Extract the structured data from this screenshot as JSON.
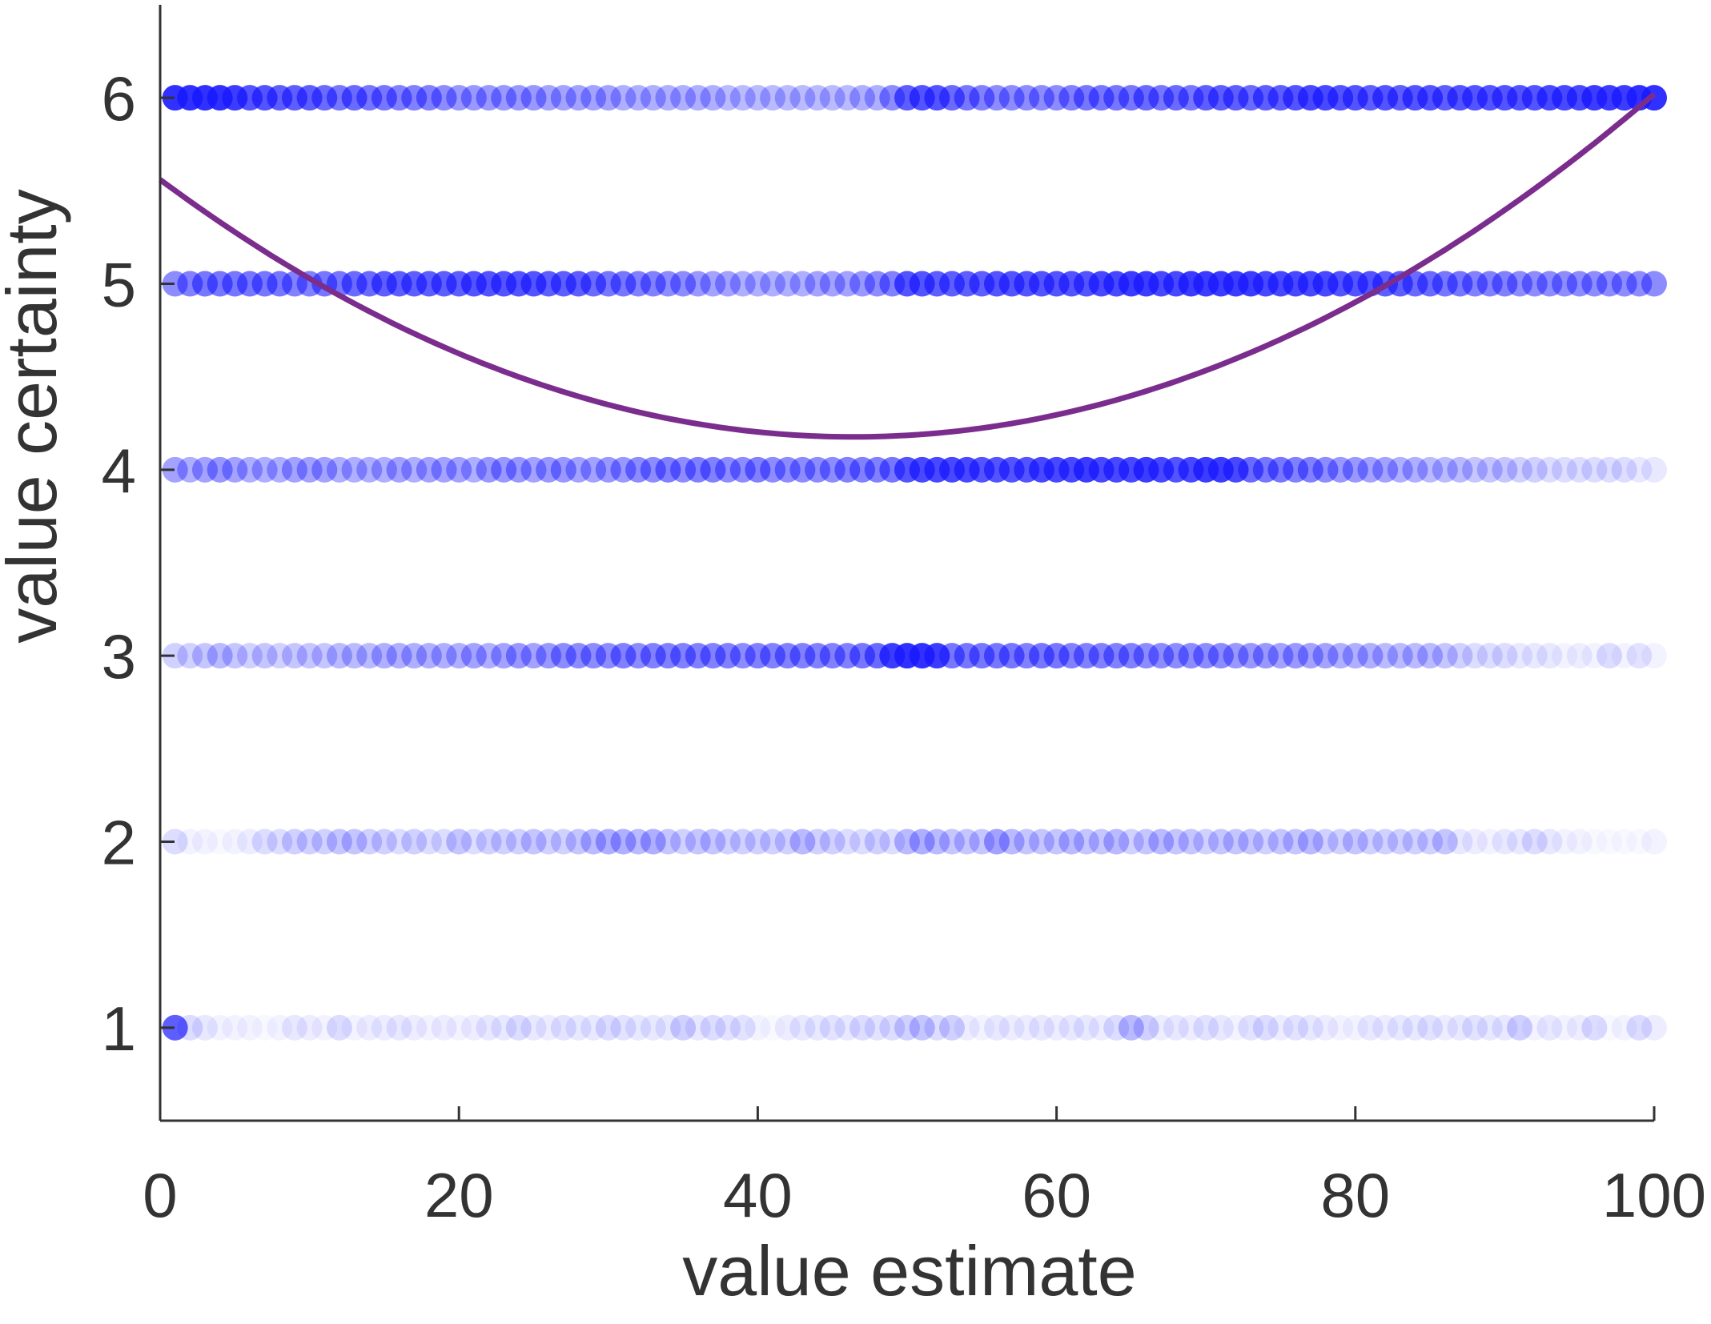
{
  "chart_data": {
    "type": "scatter",
    "xlabel": "value estimate",
    "ylabel": "value certainty",
    "xlim": [
      0,
      100
    ],
    "ylim": [
      0.5,
      6.5
    ],
    "xticks": [
      0,
      20,
      40,
      60,
      80,
      100
    ],
    "yticks": [
      1,
      2,
      3,
      4,
      5,
      6
    ],
    "grid": false,
    "marker_color": "#1a1aff",
    "curve_color": "#7b2d8e",
    "axis_color": "#333333",
    "x_step": 1,
    "points": {
      "levels": [
        6,
        5,
        4,
        3,
        2,
        1
      ],
      "x_values": [
        1,
        100
      ],
      "opacity_6": [
        0.9,
        0.9,
        0.9,
        0.9,
        0.85,
        0.75,
        0.75,
        0.7,
        0.7,
        0.7,
        0.65,
        0.6,
        0.65,
        0.6,
        0.6,
        0.55,
        0.55,
        0.55,
        0.5,
        0.45,
        0.45,
        0.45,
        0.45,
        0.45,
        0.45,
        0.4,
        0.4,
        0.4,
        0.4,
        0.4,
        0.35,
        0.35,
        0.35,
        0.35,
        0.35,
        0.35,
        0.35,
        0.3,
        0.3,
        0.3,
        0.3,
        0.3,
        0.3,
        0.3,
        0.3,
        0.3,
        0.35,
        0.35,
        0.5,
        0.7,
        0.75,
        0.75,
        0.65,
        0.6,
        0.55,
        0.5,
        0.5,
        0.5,
        0.5,
        0.5,
        0.55,
        0.6,
        0.6,
        0.6,
        0.6,
        0.65,
        0.6,
        0.65,
        0.6,
        0.7,
        0.7,
        0.7,
        0.65,
        0.7,
        0.7,
        0.75,
        0.8,
        0.8,
        0.75,
        0.75,
        0.7,
        0.75,
        0.7,
        0.75,
        0.75,
        0.7,
        0.75,
        0.75,
        0.75,
        0.75,
        0.75,
        0.75,
        0.8,
        0.8,
        0.8,
        0.85,
        0.85,
        0.85,
        0.9,
        0.9
      ],
      "opacity_5": [
        0.5,
        0.55,
        0.6,
        0.6,
        0.6,
        0.6,
        0.6,
        0.6,
        0.55,
        0.55,
        0.6,
        0.6,
        0.65,
        0.65,
        0.7,
        0.7,
        0.7,
        0.7,
        0.7,
        0.7,
        0.75,
        0.75,
        0.75,
        0.75,
        0.75,
        0.7,
        0.7,
        0.7,
        0.65,
        0.6,
        0.6,
        0.55,
        0.55,
        0.5,
        0.5,
        0.45,
        0.4,
        0.4,
        0.35,
        0.35,
        0.35,
        0.35,
        0.35,
        0.4,
        0.4,
        0.4,
        0.45,
        0.5,
        0.55,
        0.75,
        0.75,
        0.7,
        0.7,
        0.7,
        0.7,
        0.75,
        0.75,
        0.75,
        0.75,
        0.75,
        0.75,
        0.75,
        0.8,
        0.8,
        0.85,
        0.85,
        0.8,
        0.8,
        0.85,
        0.85,
        0.85,
        0.85,
        0.85,
        0.8,
        0.8,
        0.8,
        0.8,
        0.8,
        0.75,
        0.75,
        0.75,
        0.7,
        0.7,
        0.65,
        0.65,
        0.6,
        0.6,
        0.55,
        0.55,
        0.55,
        0.5,
        0.5,
        0.5,
        0.5,
        0.5,
        0.5,
        0.5,
        0.5,
        0.5,
        0.5
      ],
      "opacity_4": [
        0.4,
        0.35,
        0.4,
        0.45,
        0.4,
        0.35,
        0.35,
        0.35,
        0.4,
        0.4,
        0.4,
        0.35,
        0.35,
        0.35,
        0.35,
        0.4,
        0.35,
        0.4,
        0.4,
        0.4,
        0.35,
        0.45,
        0.45,
        0.45,
        0.4,
        0.45,
        0.45,
        0.4,
        0.4,
        0.45,
        0.45,
        0.5,
        0.5,
        0.55,
        0.5,
        0.55,
        0.55,
        0.5,
        0.5,
        0.55,
        0.5,
        0.5,
        0.5,
        0.5,
        0.5,
        0.55,
        0.55,
        0.55,
        0.6,
        0.75,
        0.8,
        0.8,
        0.8,
        0.8,
        0.75,
        0.75,
        0.75,
        0.75,
        0.8,
        0.8,
        0.8,
        0.85,
        0.8,
        0.8,
        0.8,
        0.85,
        0.8,
        0.75,
        0.8,
        0.85,
        0.85,
        0.8,
        0.65,
        0.6,
        0.6,
        0.55,
        0.55,
        0.5,
        0.45,
        0.45,
        0.4,
        0.4,
        0.35,
        0.35,
        0.3,
        0.3,
        0.3,
        0.25,
        0.25,
        0.25,
        0.2,
        0.2,
        0.15,
        0.15,
        0.15,
        0.15,
        0.15,
        0.15,
        0.1,
        0.1
      ],
      "opacity_3": [
        0.2,
        0.2,
        0.25,
        0.3,
        0.25,
        0.2,
        0.25,
        0.2,
        0.25,
        0.25,
        0.25,
        0.3,
        0.3,
        0.3,
        0.35,
        0.35,
        0.35,
        0.35,
        0.35,
        0.35,
        0.4,
        0.35,
        0.4,
        0.45,
        0.4,
        0.45,
        0.5,
        0.5,
        0.5,
        0.5,
        0.55,
        0.5,
        0.55,
        0.55,
        0.55,
        0.55,
        0.55,
        0.55,
        0.5,
        0.55,
        0.55,
        0.55,
        0.55,
        0.55,
        0.55,
        0.55,
        0.6,
        0.65,
        0.85,
        0.9,
        0.9,
        0.85,
        0.6,
        0.6,
        0.6,
        0.6,
        0.6,
        0.55,
        0.6,
        0.6,
        0.55,
        0.55,
        0.55,
        0.55,
        0.55,
        0.5,
        0.5,
        0.5,
        0.5,
        0.5,
        0.5,
        0.45,
        0.45,
        0.45,
        0.4,
        0.45,
        0.4,
        0.4,
        0.35,
        0.35,
        0.35,
        0.3,
        0.3,
        0.3,
        0.3,
        0.25,
        0.2,
        0.15,
        0.15,
        0.15,
        0.1,
        0.1,
        0.1,
        0.05,
        0.08,
        0.05,
        0.15,
        0.05,
        0.12,
        0.05
      ],
      "opacity_2": [
        0.15,
        0.05,
        0.05,
        0.03,
        0.05,
        0.08,
        0.15,
        0.15,
        0.2,
        0.2,
        0.2,
        0.25,
        0.25,
        0.2,
        0.2,
        0.15,
        0.2,
        0.15,
        0.15,
        0.25,
        0.15,
        0.2,
        0.2,
        0.2,
        0.25,
        0.2,
        0.2,
        0.25,
        0.3,
        0.35,
        0.35,
        0.3,
        0.35,
        0.25,
        0.2,
        0.25,
        0.25,
        0.2,
        0.2,
        0.2,
        0.2,
        0.2,
        0.3,
        0.2,
        0.2,
        0.15,
        0.15,
        0.2,
        0.15,
        0.3,
        0.35,
        0.3,
        0.25,
        0.25,
        0.25,
        0.4,
        0.3,
        0.25,
        0.25,
        0.25,
        0.3,
        0.25,
        0.25,
        0.3,
        0.2,
        0.25,
        0.3,
        0.25,
        0.25,
        0.2,
        0.25,
        0.25,
        0.25,
        0.2,
        0.25,
        0.25,
        0.3,
        0.2,
        0.2,
        0.25,
        0.2,
        0.2,
        0.2,
        0.2,
        0.2,
        0.25,
        0.1,
        0.08,
        0.05,
        0.1,
        0.1,
        0.15,
        0.1,
        0.05,
        0.05,
        0.03,
        0.03,
        0.03,
        0.03,
        0.05
      ],
      "opacity_1": [
        0.7,
        0.15,
        0.1,
        0.05,
        0.05,
        0.05,
        0.03,
        0.05,
        0.1,
        0.08,
        0.05,
        0.15,
        0.05,
        0.08,
        0.08,
        0.1,
        0.08,
        0.05,
        0.08,
        0.05,
        0.08,
        0.1,
        0.1,
        0.15,
        0.1,
        0.08,
        0.12,
        0.1,
        0.1,
        0.15,
        0.12,
        0.1,
        0.1,
        0.1,
        0.2,
        0.1,
        0.15,
        0.12,
        0.12,
        0.05,
        0.03,
        0.08,
        0.1,
        0.1,
        0.12,
        0.1,
        0.15,
        0.12,
        0.15,
        0.2,
        0.25,
        0.15,
        0.2,
        0.08,
        0.05,
        0.1,
        0.08,
        0.08,
        0.1,
        0.08,
        0.1,
        0.1,
        0.08,
        0.15,
        0.3,
        0.2,
        0.08,
        0.1,
        0.08,
        0.12,
        0.1,
        0.05,
        0.12,
        0.15,
        0.08,
        0.12,
        0.1,
        0.08,
        0.05,
        0.05,
        0.1,
        0.08,
        0.1,
        0.1,
        0.12,
        0.08,
        0.1,
        0.12,
        0.1,
        0.1,
        0.2,
        0.05,
        0.1,
        0.05,
        0.08,
        0.15,
        0.03,
        0.05,
        0.15,
        0.08
      ]
    },
    "fit_curve": {
      "type": "quadratic",
      "coefficients": [
        5.56,
        -0.0596,
        0.000642
      ]
    }
  }
}
